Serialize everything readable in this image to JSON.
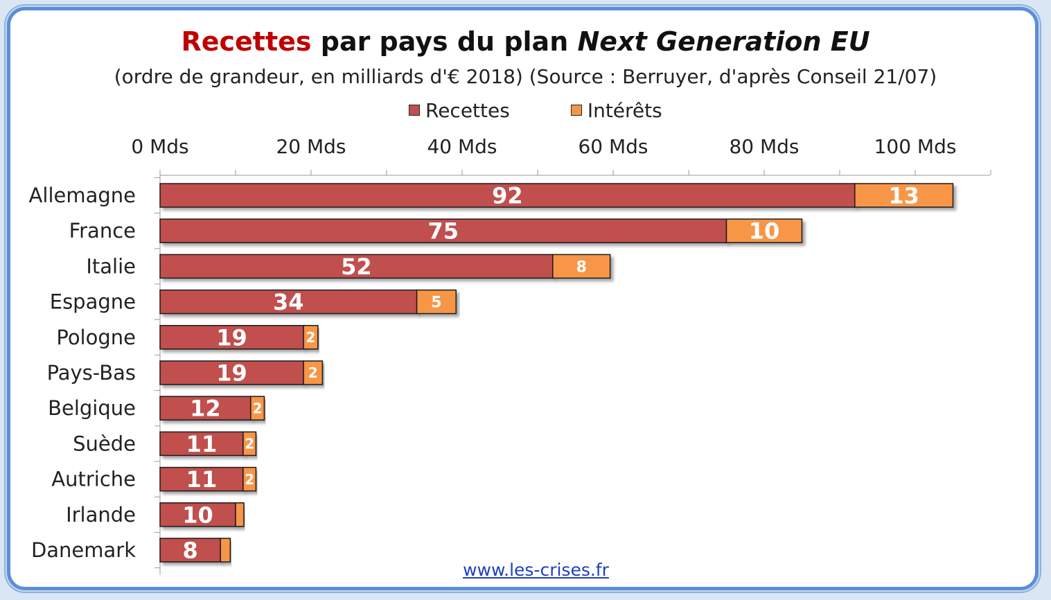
{
  "chart_data": {
    "type": "bar",
    "orientation": "horizontal",
    "stacked": true,
    "title": {
      "highlight": "Recettes",
      "middle": " par pays du plan ",
      "italic": "Next Generation EU"
    },
    "subtitle": "(ordre de grandeur, en milliards d'€ 2018) (Source : Berruyer, d'après Conseil 21/07)",
    "categories": [
      "Allemagne",
      "France",
      "Italie",
      "Espagne",
      "Pologne",
      "Pays-Bas",
      "Belgique",
      "Suède",
      "Autriche",
      "Irlande",
      "Danemark"
    ],
    "series": [
      {
        "name": "Recettes",
        "color": "#c0504d",
        "values": [
          92,
          75,
          52,
          34,
          19,
          19,
          12,
          11,
          11,
          10,
          8
        ],
        "labels": [
          "92",
          "75",
          "52",
          "34",
          "19",
          "19",
          "12",
          "11",
          "11",
          "10",
          "8"
        ]
      },
      {
        "name": "Intérêts",
        "color": "#f79646",
        "values": [
          13,
          10,
          7.6,
          5.2,
          1.9,
          2.5,
          1.8,
          1.7,
          1.7,
          1.1,
          1.3
        ],
        "labels": [
          "13",
          "10",
          "8",
          "5",
          "2",
          "2",
          "2",
          "2",
          "2",
          "",
          ""
        ]
      }
    ],
    "xaxis": {
      "range": [
        0,
        110
      ],
      "ticks": [
        0,
        20,
        40,
        60,
        80,
        100
      ],
      "tick_labels": [
        "0 Mds",
        "20 Mds",
        "40 Mds",
        "60 Mds",
        "80 Mds",
        "100 Mds"
      ],
      "position": "top"
    },
    "legend": "top"
  },
  "footer": {
    "link": "www.les-crises.fr"
  }
}
